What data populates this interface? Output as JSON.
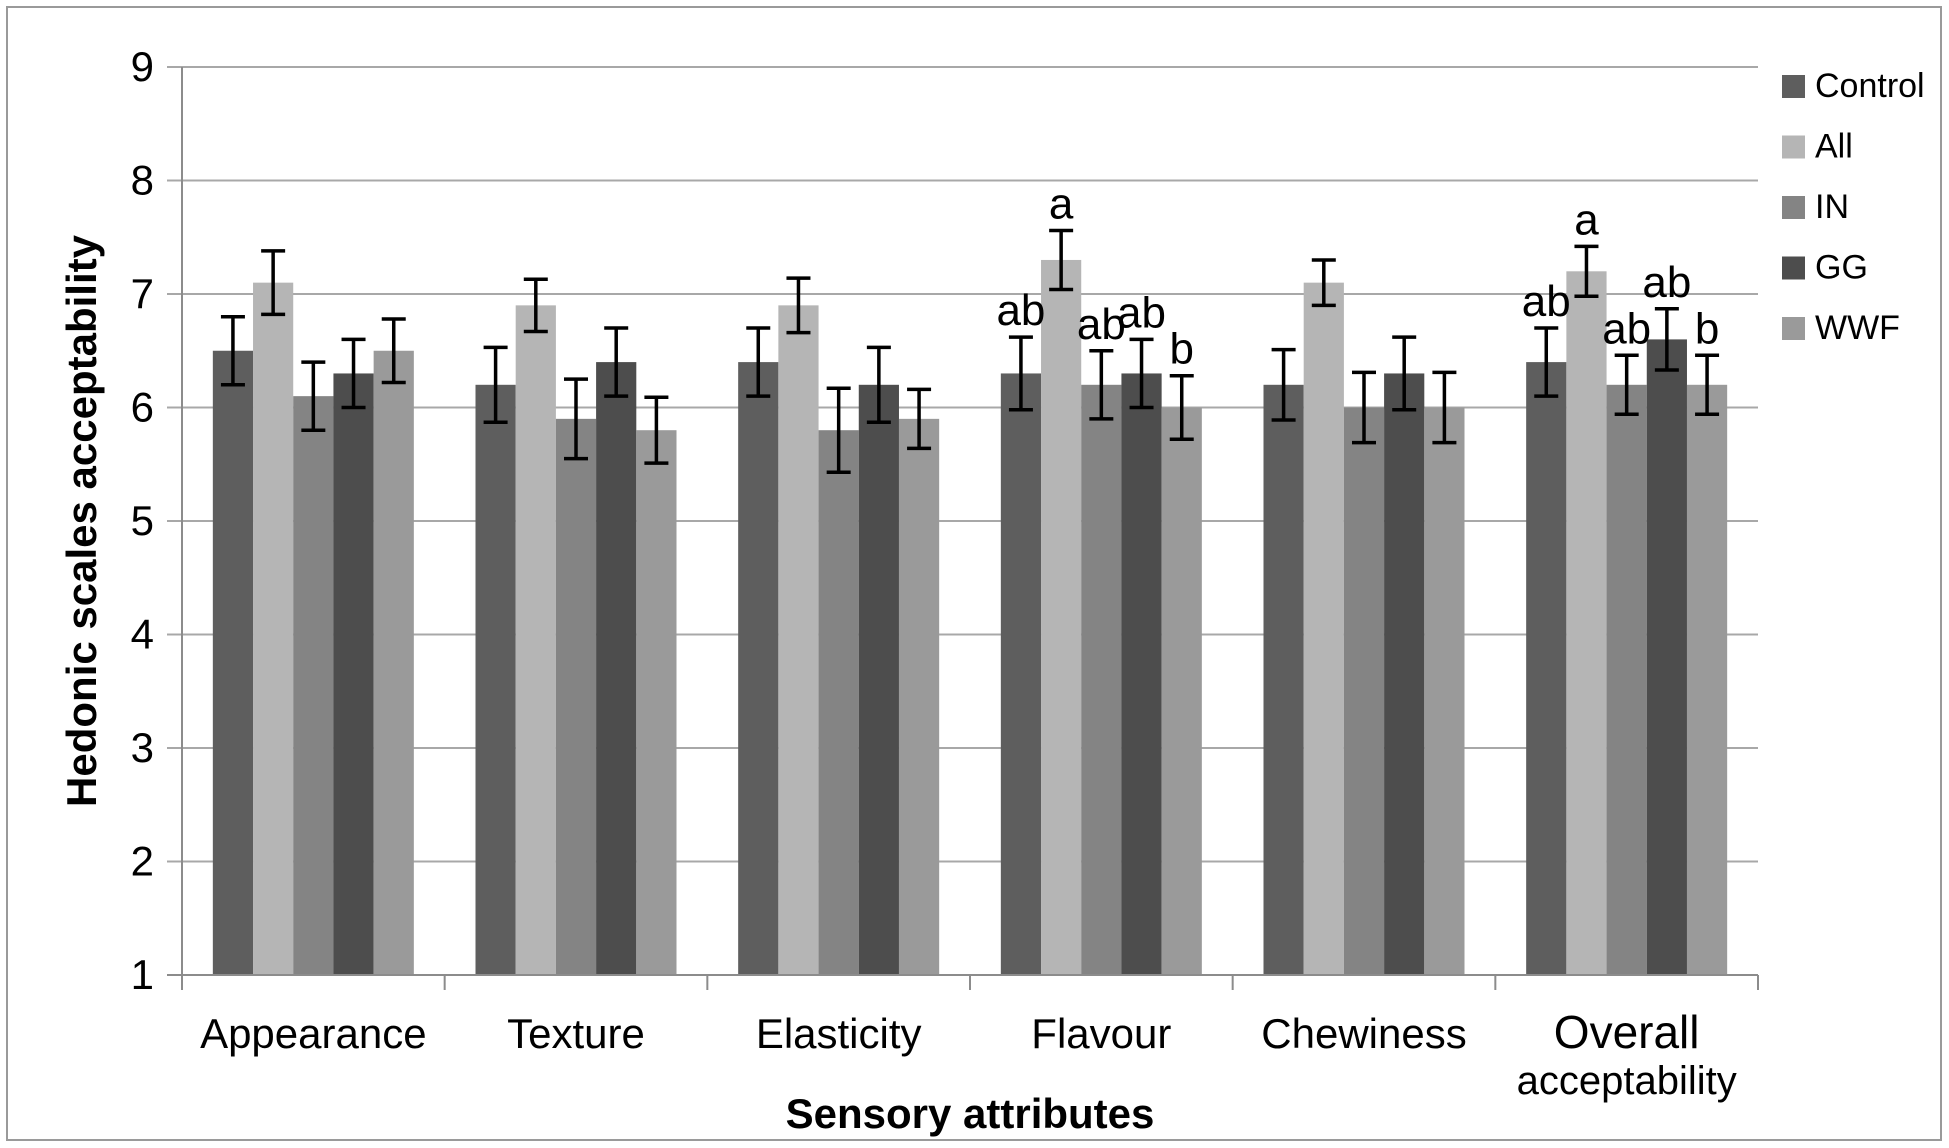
{
  "colors": {
    "grid": "#a8a8a8",
    "axis": "#8c8c8c",
    "error_bar": "#000000",
    "text": "#000000",
    "figure_border": "#9a9a9a",
    "background": "#ffffff"
  },
  "chart_data": {
    "type": "bar",
    "title": "",
    "xlabel": "Sensory attributes",
    "ylabel": "Hedonic scales acceptability",
    "ylim": [
      1,
      9
    ],
    "yticks": [
      1,
      2,
      3,
      4,
      5,
      6,
      7,
      8,
      9
    ],
    "grid": "horizontal",
    "legend_position": "right",
    "bar_baseline_value": 1,
    "categories": [
      "Appearance",
      "Texture",
      "Elasticity",
      "Flavour",
      "Chewiness",
      "Overall acceptability"
    ],
    "category_label_lines": [
      [
        "Appearance"
      ],
      [
        "Texture"
      ],
      [
        "Elasticity"
      ],
      [
        "Flavour"
      ],
      [
        "Chewiness"
      ],
      [
        "Overall",
        "acceptability"
      ]
    ],
    "series": [
      {
        "name": "Control",
        "color": "#5e5e5e",
        "values": [
          6.5,
          6.2,
          6.4,
          6.3,
          6.2,
          6.4
        ],
        "errors": [
          0.3,
          0.33,
          0.3,
          0.32,
          0.31,
          0.3
        ],
        "letters": [
          "",
          "",
          "",
          "ab",
          "",
          "ab"
        ]
      },
      {
        "name": "All",
        "color": "#b5b5b5",
        "values": [
          7.1,
          6.9,
          6.9,
          7.3,
          7.1,
          7.2
        ],
        "errors": [
          0.28,
          0.23,
          0.24,
          0.26,
          0.2,
          0.22
        ],
        "letters": [
          "",
          "",
          "",
          "a",
          "",
          "a"
        ]
      },
      {
        "name": "IN",
        "color": "#848484",
        "values": [
          6.1,
          5.9,
          5.8,
          6.2,
          6.0,
          6.2
        ],
        "errors": [
          0.3,
          0.35,
          0.37,
          0.3,
          0.31,
          0.26
        ],
        "letters": [
          "",
          "",
          "",
          "ab",
          "",
          "ab"
        ]
      },
      {
        "name": "GG",
        "color": "#4d4d4d",
        "values": [
          6.3,
          6.4,
          6.2,
          6.3,
          6.3,
          6.6
        ],
        "errors": [
          0.3,
          0.3,
          0.33,
          0.3,
          0.32,
          0.27
        ],
        "letters": [
          "",
          "",
          "",
          "ab",
          "",
          "ab"
        ]
      },
      {
        "name": "WWF",
        "color": "#9a9a9a",
        "values": [
          6.5,
          5.8,
          5.9,
          6.0,
          6.0,
          6.2
        ],
        "errors": [
          0.28,
          0.29,
          0.26,
          0.28,
          0.31,
          0.26
        ],
        "letters": [
          "",
          "",
          "",
          "b",
          "",
          "b"
        ]
      }
    ]
  }
}
